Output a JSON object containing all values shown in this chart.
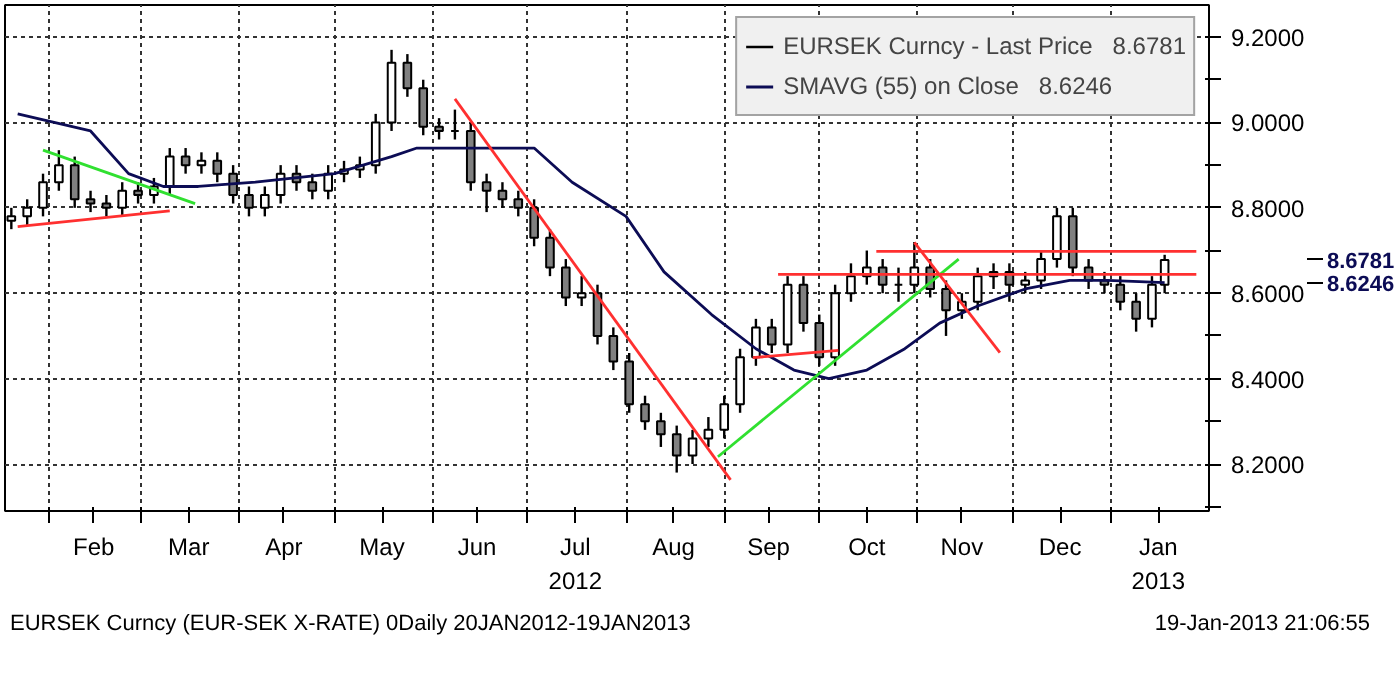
{
  "chart_data": {
    "type": "candlestick",
    "xlim": [
      "2012-01-18",
      "2013-02-01"
    ],
    "ylim": [
      8.09,
      9.275
    ],
    "xticks": [
      {
        "value": "2012-02-01",
        "label": null
      },
      {
        "value": "2012-02-15",
        "label": "Feb"
      },
      {
        "value": "2012-03-01",
        "label": null
      },
      {
        "value": "2012-03-16",
        "label": "Mar"
      },
      {
        "value": "2012-04-01",
        "label": null
      },
      {
        "value": "2012-04-15",
        "label": "Apr"
      },
      {
        "value": "2012-05-01",
        "label": null
      },
      {
        "value": "2012-05-16",
        "label": "May"
      },
      {
        "value": "2012-06-01",
        "label": null
      },
      {
        "value": "2012-06-15",
        "label": "Jun"
      },
      {
        "value": "2012-07-01",
        "label": null
      },
      {
        "value": "2012-07-16",
        "label": "Jul\n2012"
      },
      {
        "value": "2012-08-01",
        "label": null
      },
      {
        "value": "2012-08-16",
        "label": "Aug"
      },
      {
        "value": "2012-09-01",
        "label": null
      },
      {
        "value": "2012-09-15",
        "label": "Sep"
      },
      {
        "value": "2012-10-01",
        "label": null
      },
      {
        "value": "2012-10-16",
        "label": "Oct"
      },
      {
        "value": "2012-11-01",
        "label": null
      },
      {
        "value": "2012-11-15",
        "label": "Nov"
      },
      {
        "value": "2012-12-01",
        "label": null
      },
      {
        "value": "2012-12-16",
        "label": "Dec"
      },
      {
        "value": "2013-01-01",
        "label": null
      },
      {
        "value": "2013-01-16",
        "label": "Jan\n2013"
      }
    ],
    "yticks": [
      {
        "value": 8.1,
        "label": null
      },
      {
        "value": 8.2,
        "label": "8.2000"
      },
      {
        "value": 8.3,
        "label": null
      },
      {
        "value": 8.4,
        "label": "8.4000"
      },
      {
        "value": 8.5,
        "label": null
      },
      {
        "value": 8.6,
        "label": "8.6000"
      },
      {
        "value": 8.7,
        "label": null
      },
      {
        "value": 8.8,
        "label": "8.8000"
      },
      {
        "value": 8.9,
        "label": null
      },
      {
        "value": 9.0,
        "label": "9.0000"
      },
      {
        "value": 9.1,
        "label": null
      },
      {
        "value": 9.2,
        "label": "9.2000"
      }
    ],
    "grid": true,
    "legend": "top right",
    "series": [
      {
        "name": "EURSEK Curncy - Last Price   8.6781",
        "color": "#000000",
        "x": [
          "2012-01-20",
          "2012-01-25",
          "2012-01-30",
          "2012-02-04",
          "2012-02-09",
          "2012-02-14",
          "2012-02-19",
          "2012-02-24",
          "2012-02-29",
          "2012-03-05",
          "2012-03-10",
          "2012-03-15",
          "2012-03-20",
          "2012-03-25",
          "2012-03-30",
          "2012-04-04",
          "2012-04-09",
          "2012-04-14",
          "2012-04-19",
          "2012-04-24",
          "2012-04-29",
          "2012-05-04",
          "2012-05-09",
          "2012-05-14",
          "2012-05-19",
          "2012-05-24",
          "2012-05-29",
          "2012-06-03",
          "2012-06-08",
          "2012-06-13",
          "2012-06-18",
          "2012-06-23",
          "2012-06-28",
          "2012-07-03",
          "2012-07-08",
          "2012-07-13",
          "2012-07-18",
          "2012-07-23",
          "2012-07-28",
          "2012-08-02",
          "2012-08-07",
          "2012-08-12",
          "2012-08-17",
          "2012-08-22",
          "2012-08-27",
          "2012-09-01",
          "2012-09-06",
          "2012-09-11",
          "2012-09-16",
          "2012-09-21",
          "2012-09-26",
          "2012-10-01",
          "2012-10-06",
          "2012-10-11",
          "2012-10-16",
          "2012-10-21",
          "2012-10-26",
          "2012-10-31",
          "2012-11-05",
          "2012-11-10",
          "2012-11-15",
          "2012-11-20",
          "2012-11-25",
          "2012-11-30",
          "2012-12-05",
          "2012-12-10",
          "2012-12-15",
          "2012-12-20",
          "2012-12-25",
          "2012-12-30",
          "2013-01-04",
          "2013-01-09",
          "2013-01-14",
          "2013-01-18"
        ],
        "ohlc": [
          [
            8.77,
            8.8,
            8.75,
            8.78
          ],
          [
            8.78,
            8.82,
            8.76,
            8.8
          ],
          [
            8.8,
            8.88,
            8.78,
            8.86
          ],
          [
            8.86,
            8.935,
            8.84,
            8.9
          ],
          [
            8.9,
            8.92,
            8.8,
            8.82
          ],
          [
            8.82,
            8.84,
            8.79,
            8.81
          ],
          [
            8.81,
            8.83,
            8.78,
            8.8
          ],
          [
            8.8,
            8.86,
            8.78,
            8.84
          ],
          [
            8.84,
            8.86,
            8.81,
            8.83
          ],
          [
            8.83,
            8.87,
            8.81,
            8.85
          ],
          [
            8.85,
            8.94,
            8.83,
            8.92
          ],
          [
            8.92,
            8.94,
            8.88,
            8.9
          ],
          [
            8.9,
            8.93,
            8.88,
            8.91
          ],
          [
            8.91,
            8.93,
            8.86,
            8.88
          ],
          [
            8.88,
            8.9,
            8.81,
            8.83
          ],
          [
            8.83,
            8.85,
            8.78,
            8.8
          ],
          [
            8.8,
            8.85,
            8.78,
            8.83
          ],
          [
            8.83,
            8.9,
            8.81,
            8.88
          ],
          [
            8.88,
            8.9,
            8.84,
            8.86
          ],
          [
            8.86,
            8.88,
            8.82,
            8.84
          ],
          [
            8.84,
            8.9,
            8.82,
            8.88
          ],
          [
            8.88,
            8.91,
            8.86,
            8.89
          ],
          [
            8.89,
            8.92,
            8.87,
            8.9
          ],
          [
            8.9,
            9.02,
            8.88,
            9.0
          ],
          [
            9.0,
            9.17,
            8.98,
            9.14
          ],
          [
            9.14,
            9.16,
            9.06,
            9.08
          ],
          [
            9.08,
            9.1,
            8.97,
            8.99
          ],
          [
            8.99,
            9.01,
            8.96,
            8.98
          ],
          [
            8.98,
            9.03,
            8.96,
            8.98
          ],
          [
            8.98,
            9.0,
            8.84,
            8.86
          ],
          [
            8.86,
            8.88,
            8.79,
            8.84
          ],
          [
            8.84,
            8.86,
            8.8,
            8.82
          ],
          [
            8.82,
            8.84,
            8.78,
            8.8
          ],
          [
            8.8,
            8.82,
            8.71,
            8.73
          ],
          [
            8.73,
            8.75,
            8.64,
            8.66
          ],
          [
            8.66,
            8.68,
            8.57,
            8.59
          ],
          [
            8.59,
            8.64,
            8.57,
            8.6
          ],
          [
            8.6,
            8.62,
            8.48,
            8.5
          ],
          [
            8.5,
            8.52,
            8.42,
            8.44
          ],
          [
            8.44,
            8.46,
            8.32,
            8.34
          ],
          [
            8.34,
            8.36,
            8.28,
            8.3
          ],
          [
            8.3,
            8.32,
            8.24,
            8.27
          ],
          [
            8.27,
            8.29,
            8.18,
            8.22
          ],
          [
            8.22,
            8.28,
            8.2,
            8.26
          ],
          [
            8.26,
            8.31,
            8.24,
            8.28
          ],
          [
            8.28,
            8.36,
            8.26,
            8.34
          ],
          [
            8.34,
            8.47,
            8.32,
            8.45
          ],
          [
            8.45,
            8.54,
            8.43,
            8.52
          ],
          [
            8.52,
            8.54,
            8.46,
            8.48
          ],
          [
            8.48,
            8.64,
            8.46,
            8.62
          ],
          [
            8.62,
            8.64,
            8.51,
            8.53
          ],
          [
            8.53,
            8.55,
            8.43,
            8.45
          ],
          [
            8.45,
            8.62,
            8.43,
            8.6
          ],
          [
            8.6,
            8.67,
            8.58,
            8.64
          ],
          [
            8.64,
            8.7,
            8.62,
            8.66
          ],
          [
            8.66,
            8.68,
            8.6,
            8.62
          ],
          [
            8.62,
            8.66,
            8.58,
            8.62
          ],
          [
            8.62,
            8.72,
            8.6,
            8.66
          ],
          [
            8.66,
            8.68,
            8.59,
            8.61
          ],
          [
            8.61,
            8.63,
            8.5,
            8.56
          ],
          [
            8.56,
            8.6,
            8.54,
            8.58
          ],
          [
            8.58,
            8.66,
            8.56,
            8.64
          ],
          [
            8.64,
            8.67,
            8.61,
            8.65
          ],
          [
            8.65,
            8.67,
            8.58,
            8.62
          ],
          [
            8.62,
            8.65,
            8.6,
            8.63
          ],
          [
            8.63,
            8.7,
            8.61,
            8.68
          ],
          [
            8.68,
            8.8,
            8.66,
            8.78
          ],
          [
            8.78,
            8.8,
            8.64,
            8.66
          ],
          [
            8.66,
            8.68,
            8.61,
            8.63
          ],
          [
            8.63,
            8.65,
            8.6,
            8.62
          ],
          [
            8.62,
            8.64,
            8.56,
            8.58
          ],
          [
            8.58,
            8.6,
            8.51,
            8.54
          ],
          [
            8.54,
            8.64,
            8.52,
            8.62
          ],
          [
            8.62,
            8.69,
            8.6,
            8.6781
          ]
        ]
      },
      {
        "type": "line",
        "name": "SMAVG (55) on Close   8.6246",
        "color": "#0c0c55",
        "x": [
          "2012-01-22",
          "2012-02-14",
          "2012-02-26",
          "2012-03-08",
          "2012-03-19",
          "2012-04-06",
          "2012-05-01",
          "2012-05-19",
          "2012-05-27",
          "2012-06-10",
          "2012-07-03",
          "2012-07-15",
          "2012-08-01",
          "2012-08-13",
          "2012-08-28",
          "2012-09-11",
          "2012-09-23",
          "2012-10-04",
          "2012-10-16",
          "2012-10-28",
          "2012-11-08",
          "2012-11-20",
          "2012-12-05",
          "2012-12-19",
          "2012-12-31",
          "2013-01-18"
        ],
        "values": [
          9.02,
          8.98,
          8.88,
          8.85,
          8.85,
          8.86,
          8.88,
          8.92,
          8.94,
          8.94,
          8.94,
          8.86,
          8.78,
          8.65,
          8.55,
          8.47,
          8.42,
          8.4,
          8.42,
          8.47,
          8.53,
          8.57,
          8.61,
          8.63,
          8.63,
          8.6246
        ]
      },
      {
        "type": "line",
        "color": "#ff3030",
        "x": [
          "2012-01-22",
          "2012-03-10"
        ],
        "values": [
          8.756,
          8.793
        ]
      },
      {
        "type": "line",
        "color": "#30e030",
        "x": [
          "2012-01-30",
          "2012-03-18"
        ],
        "values": [
          8.935,
          8.81
        ]
      },
      {
        "type": "line",
        "color": "#ff3030",
        "x": [
          "2012-06-08",
          "2012-09-03"
        ],
        "values": [
          9.055,
          8.163
        ]
      },
      {
        "type": "line",
        "color": "#30e030",
        "x": [
          "2012-08-30",
          "2012-11-14"
        ],
        "values": [
          8.217,
          8.68
        ]
      },
      {
        "type": "line",
        "color": "#ff3030",
        "x": [
          "2012-09-10",
          "2012-10-07"
        ],
        "values": [
          8.449,
          8.466
        ]
      },
      {
        "type": "line",
        "color": "#ff3030",
        "x": [
          "2012-09-18",
          "2013-01-28"
        ],
        "values": [
          8.644,
          8.644
        ]
      },
      {
        "type": "line",
        "color": "#ff3030",
        "x": [
          "2012-10-19",
          "2013-01-28"
        ],
        "values": [
          8.698,
          8.698
        ]
      },
      {
        "type": "line",
        "color": "#ff3030",
        "x": [
          "2012-10-31",
          "2012-11-27"
        ],
        "values": [
          8.719,
          8.461
        ]
      }
    ],
    "annotations": [
      "8.6781",
      "8.6246",
      "EURSEK Curncy (EUR-SEK X-RATE) 0Daily 20JAN2012-19JAN2013",
      "19-Jan-2013 21:06:55"
    ]
  }
}
